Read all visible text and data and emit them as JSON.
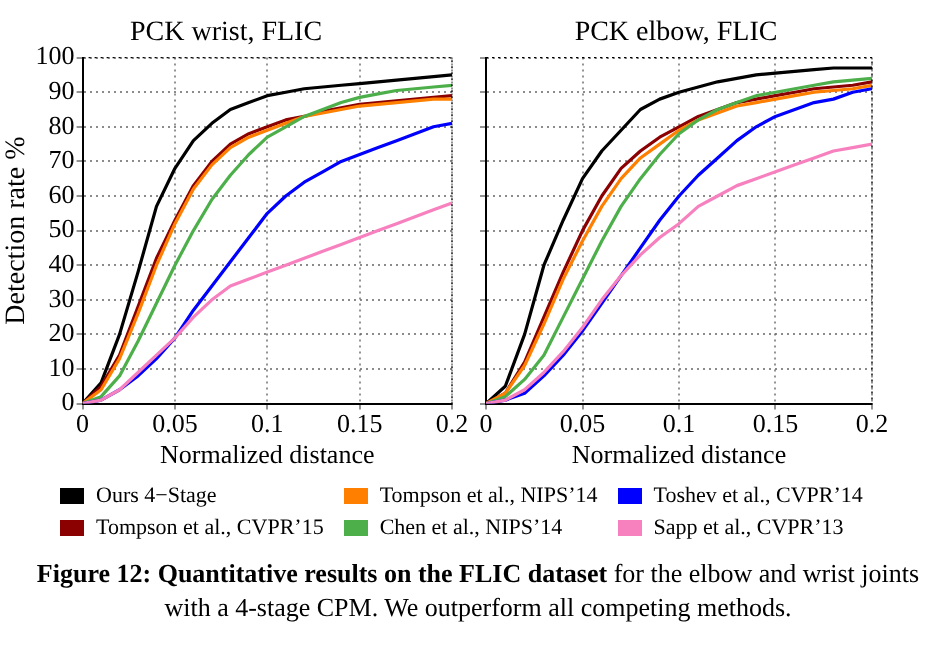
{
  "chart_data": [
    {
      "type": "line",
      "title": "PCK wrist, FLIC",
      "xlabel": "Normalized distance",
      "ylabel": "Detection rate %",
      "x": [
        0,
        0.01,
        0.02,
        0.03,
        0.04,
        0.05,
        0.06,
        0.07,
        0.08,
        0.09,
        0.1,
        0.11,
        0.12,
        0.13,
        0.14,
        0.15,
        0.16,
        0.17,
        0.18,
        0.19,
        0.2
      ],
      "xlim": [
        0,
        0.2
      ],
      "xticks": [
        0,
        0.05,
        0.1,
        0.15,
        0.2
      ],
      "ylim": [
        0,
        100
      ],
      "yticks": [
        0,
        10,
        20,
        30,
        40,
        50,
        60,
        70,
        80,
        90,
        100
      ],
      "grid": true,
      "legend": "bottom",
      "marker": "none",
      "line_style": "solid",
      "series": [
        {
          "name": "Ours 4−Stage",
          "color": "#000000",
          "values": [
            0,
            6,
            20,
            38,
            57,
            68,
            76,
            81,
            85,
            87,
            89,
            90,
            91,
            91.5,
            92,
            92.5,
            93,
            93.5,
            94,
            94.5,
            95
          ]
        },
        {
          "name": "Tompson et al., CVPR’15",
          "color": "#8b0000",
          "values": [
            0,
            5,
            14,
            28,
            42,
            53,
            63,
            70,
            75,
            78,
            80,
            82,
            83,
            84.5,
            85.5,
            86.5,
            87,
            87.5,
            88,
            88.5,
            89
          ]
        },
        {
          "name": "Tompson et al., NIPS’14",
          "color": "#ff7f00",
          "values": [
            0,
            4,
            13,
            26,
            40,
            52,
            62,
            69,
            74,
            77,
            79,
            81,
            83,
            84,
            85,
            86,
            86.5,
            87,
            87.5,
            88,
            88
          ]
        },
        {
          "name": "Chen et al., NIPS’14",
          "color": "#4daf4a",
          "values": [
            0,
            2,
            8,
            18,
            29,
            40,
            50,
            59,
            66,
            72,
            77,
            80,
            83,
            85,
            87,
            88.5,
            89.5,
            90.5,
            91,
            91.5,
            92
          ]
        },
        {
          "name": "Toshev et al., CVPR’14",
          "color": "#0000ff",
          "values": [
            0,
            1,
            4,
            8,
            13,
            19,
            27,
            34,
            41,
            48,
            55,
            60,
            64,
            67,
            70,
            72,
            74,
            76,
            78,
            80,
            81
          ]
        },
        {
          "name": "Sapp et al., CVPR’13",
          "color": "#f781bf",
          "values": [
            0,
            1,
            4,
            9,
            14,
            19,
            25,
            30,
            34,
            36,
            38,
            40,
            42,
            44,
            46,
            48,
            50,
            52,
            54,
            56,
            58
          ]
        }
      ],
      "annotations": [
        "Figure 12: Quantitative results on the FLIC dataset",
        " for the elbow and wrist joints with a 4-stage CPM. We outperform all competing methods."
      ]
    },
    {
      "type": "line",
      "title": "PCK elbow, FLIC",
      "xlabel": "Normalized distance",
      "x": [
        0,
        0.01,
        0.02,
        0.03,
        0.04,
        0.05,
        0.06,
        0.07,
        0.08,
        0.09,
        0.1,
        0.11,
        0.12,
        0.13,
        0.14,
        0.15,
        0.16,
        0.17,
        0.18,
        0.19,
        0.2
      ],
      "xlim": [
        0,
        0.2
      ],
      "xticks": [
        0,
        0.05,
        0.1,
        0.15,
        0.2
      ],
      "ylim": [
        0,
        100
      ],
      "yticks": [
        0,
        10,
        20,
        30,
        40,
        50,
        60,
        70,
        80,
        90,
        100
      ],
      "tick_labels": "x",
      "grid": true,
      "marker": "none",
      "line_style": "solid",
      "series": [
        {
          "color": "#000000",
          "values": [
            0,
            5,
            20,
            40,
            53,
            65,
            73,
            79,
            85,
            88,
            90,
            91.5,
            93,
            94,
            95,
            95.5,
            96,
            96.5,
            97,
            97,
            97
          ]
        },
        {
          "color": "#8b0000",
          "values": [
            0,
            3,
            12,
            25,
            38,
            50,
            60,
            68,
            73,
            77,
            80,
            83,
            85,
            87,
            88,
            89,
            90,
            91,
            91.5,
            92,
            93
          ]
        },
        {
          "color": "#ff7f00",
          "values": [
            0,
            3,
            11,
            23,
            36,
            47,
            57,
            65,
            71,
            75,
            79,
            82,
            84,
            86,
            87,
            88,
            89,
            90,
            90.5,
            91,
            92
          ]
        },
        {
          "color": "#4daf4a",
          "values": [
            0,
            2,
            7,
            14,
            25,
            36,
            47,
            57,
            65,
            72,
            78,
            82,
            85,
            87,
            89,
            90,
            91,
            92,
            93,
            93.5,
            94
          ]
        },
        {
          "color": "#0000ff",
          "values": [
            0,
            1,
            3,
            8,
            14,
            21,
            29,
            37,
            45,
            53,
            60,
            66,
            71,
            76,
            80,
            83,
            85,
            87,
            88,
            90,
            91
          ]
        },
        {
          "color": "#f781bf",
          "values": [
            0,
            1,
            4,
            9,
            15,
            22,
            30,
            37,
            43,
            48,
            52,
            57,
            60,
            63,
            65,
            67,
            69,
            71,
            73,
            74,
            75
          ]
        }
      ]
    }
  ]
}
